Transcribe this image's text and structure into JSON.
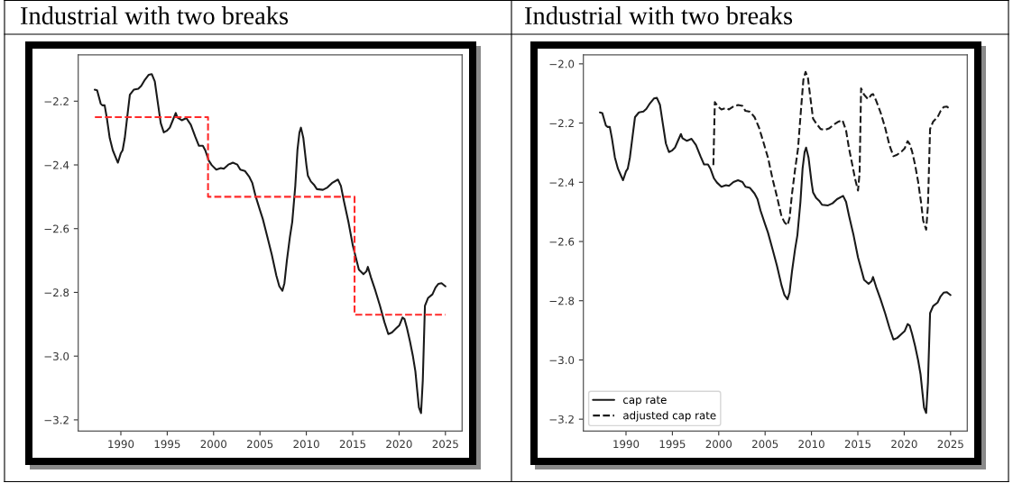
{
  "chart_data": [
    {
      "type": "line",
      "title": "Industrial with two breaks",
      "series": [
        {
          "color": "#1a1a1a",
          "line_style": "solid",
          "x": [
            1987.18,
            1987.44,
            1987.83,
            1988.0,
            1988.25,
            1988.48,
            1988.8,
            1989.13,
            1989.45,
            1989.68,
            1990.0,
            1990.19,
            1990.42,
            1990.68,
            1990.97,
            1991.39,
            1991.88,
            1992.2,
            1992.59,
            1993.01,
            1993.33,
            1993.66,
            1993.98,
            1994.3,
            1994.63,
            1994.95,
            1995.28,
            1995.6,
            1995.92,
            1996.09,
            1996.57,
            1997.06,
            1997.54,
            1998.03,
            1998.42,
            1998.84,
            1999.1,
            1999.49,
            1999.81,
            2000.29,
            2000.78,
            2001.1,
            2001.59,
            2002.08,
            2002.56,
            2002.88,
            2003.37,
            2003.86,
            2004.18,
            2004.5,
            2004.99,
            2005.31,
            2005.8,
            2006.28,
            2006.77,
            2007.09,
            2007.42,
            2007.64,
            2007.9,
            2008.23,
            2008.48,
            2008.81,
            2009.04,
            2009.26,
            2009.42,
            2009.68,
            2010.01,
            2010.17,
            2010.49,
            2010.82,
            2011.14,
            2011.79,
            2012.27,
            2012.76,
            2013.41,
            2013.73,
            2014.05,
            2014.54,
            2015.02,
            2015.35,
            2015.67,
            2016.16,
            2016.48,
            2016.64,
            2016.97,
            2017.45,
            2017.94,
            2018.42,
            2018.84,
            2019.23,
            2019.72,
            2020.04,
            2020.37,
            2020.59,
            2020.85,
            2021.18,
            2021.5,
            2021.76,
            2021.98,
            2022.14,
            2022.37,
            2022.56,
            2022.79,
            2023.12,
            2023.6,
            2023.93,
            2024.25,
            2024.58,
            2025.0
          ],
          "values": [
            -2.164,
            -2.166,
            -2.208,
            -2.213,
            -2.213,
            -2.251,
            -2.316,
            -2.354,
            -2.377,
            -2.393,
            -2.363,
            -2.354,
            -2.316,
            -2.251,
            -2.18,
            -2.164,
            -2.161,
            -2.152,
            -2.133,
            -2.117,
            -2.115,
            -2.138,
            -2.204,
            -2.269,
            -2.298,
            -2.293,
            -2.283,
            -2.26,
            -2.237,
            -2.251,
            -2.26,
            -2.253,
            -2.274,
            -2.312,
            -2.34,
            -2.34,
            -2.354,
            -2.387,
            -2.401,
            -2.415,
            -2.41,
            -2.412,
            -2.399,
            -2.393,
            -2.399,
            -2.415,
            -2.419,
            -2.438,
            -2.457,
            -2.495,
            -2.541,
            -2.57,
            -2.626,
            -2.682,
            -2.748,
            -2.781,
            -2.795,
            -2.771,
            -2.701,
            -2.626,
            -2.579,
            -2.466,
            -2.354,
            -2.298,
            -2.283,
            -2.316,
            -2.401,
            -2.434,
            -2.452,
            -2.462,
            -2.476,
            -2.478,
            -2.471,
            -2.457,
            -2.446,
            -2.466,
            -2.513,
            -2.579,
            -2.654,
            -2.692,
            -2.729,
            -2.743,
            -2.734,
            -2.72,
            -2.753,
            -2.795,
            -2.842,
            -2.893,
            -2.931,
            -2.926,
            -2.912,
            -2.903,
            -2.879,
            -2.884,
            -2.912,
            -2.954,
            -3.001,
            -3.048,
            -3.114,
            -3.161,
            -3.179,
            -3.076,
            -2.842,
            -2.818,
            -2.806,
            -2.785,
            -2.773,
            -2.771,
            -2.781
          ]
        },
        {
          "type": "step",
          "color": "#ff2a2a",
          "line_style": "dashed",
          "x": [
            1987.2,
            1999.4,
            2015.2,
            2025.0
          ],
          "values": [
            -2.25,
            -2.5,
            -2.87,
            -2.87
          ]
        }
      ],
      "xlim": [
        1985.4,
        2026.8
      ],
      "xticks": [
        1990,
        1995,
        2000,
        2005,
        2010,
        2015,
        2020,
        2025
      ],
      "ylim": [
        -3.235,
        -2.055
      ],
      "yticks": [
        {
          "value": -2.2,
          "label": "−2.2"
        },
        {
          "value": -2.4,
          "label": "−2.4"
        },
        {
          "value": -2.6,
          "label": "−2.6"
        },
        {
          "value": -2.8,
          "label": "−2.8"
        },
        {
          "value": -3.0,
          "label": "−3.0"
        },
        {
          "value": -3.2,
          "label": "−3.2"
        }
      ]
    },
    {
      "type": "line",
      "title": "Industrial with two breaks",
      "series": [
        {
          "name": "cap rate",
          "color": "#1a1a1a",
          "line_style": "solid",
          "x": [
            1987.18,
            1987.44,
            1987.83,
            1988.0,
            1988.25,
            1988.48,
            1988.8,
            1989.13,
            1989.45,
            1989.68,
            1990.0,
            1990.19,
            1990.42,
            1990.68,
            1990.97,
            1991.39,
            1991.88,
            1992.2,
            1992.59,
            1993.01,
            1993.33,
            1993.66,
            1993.98,
            1994.3,
            1994.63,
            1994.95,
            1995.28,
            1995.6,
            1995.92,
            1996.09,
            1996.57,
            1997.06,
            1997.54,
            1998.03,
            1998.42,
            1998.84,
            1999.1,
            1999.49,
            1999.81,
            2000.29,
            2000.78,
            2001.1,
            2001.59,
            2002.08,
            2002.56,
            2002.88,
            2003.37,
            2003.86,
            2004.18,
            2004.5,
            2004.99,
            2005.31,
            2005.8,
            2006.28,
            2006.77,
            2007.09,
            2007.42,
            2007.64,
            2007.9,
            2008.23,
            2008.48,
            2008.81,
            2009.04,
            2009.26,
            2009.42,
            2009.68,
            2010.01,
            2010.17,
            2010.49,
            2010.82,
            2011.14,
            2011.79,
            2012.27,
            2012.76,
            2013.41,
            2013.73,
            2014.05,
            2014.54,
            2015.02,
            2015.35,
            2015.67,
            2016.16,
            2016.48,
            2016.64,
            2016.97,
            2017.45,
            2017.94,
            2018.42,
            2018.84,
            2019.23,
            2019.72,
            2020.04,
            2020.37,
            2020.59,
            2020.85,
            2021.18,
            2021.5,
            2021.76,
            2021.98,
            2022.14,
            2022.37,
            2022.56,
            2022.79,
            2023.12,
            2023.6,
            2023.93,
            2024.25,
            2024.58,
            2025.0
          ],
          "values": [
            -2.164,
            -2.166,
            -2.208,
            -2.213,
            -2.213,
            -2.251,
            -2.316,
            -2.354,
            -2.377,
            -2.393,
            -2.363,
            -2.354,
            -2.316,
            -2.251,
            -2.18,
            -2.164,
            -2.161,
            -2.152,
            -2.133,
            -2.117,
            -2.115,
            -2.138,
            -2.204,
            -2.269,
            -2.298,
            -2.293,
            -2.283,
            -2.26,
            -2.237,
            -2.251,
            -2.26,
            -2.253,
            -2.274,
            -2.312,
            -2.34,
            -2.34,
            -2.354,
            -2.387,
            -2.401,
            -2.415,
            -2.41,
            -2.412,
            -2.399,
            -2.393,
            -2.399,
            -2.415,
            -2.419,
            -2.438,
            -2.457,
            -2.495,
            -2.541,
            -2.57,
            -2.626,
            -2.682,
            -2.748,
            -2.781,
            -2.795,
            -2.771,
            -2.701,
            -2.626,
            -2.579,
            -2.466,
            -2.354,
            -2.298,
            -2.283,
            -2.316,
            -2.401,
            -2.434,
            -2.452,
            -2.462,
            -2.476,
            -2.478,
            -2.471,
            -2.457,
            -2.446,
            -2.466,
            -2.513,
            -2.579,
            -2.654,
            -2.692,
            -2.729,
            -2.743,
            -2.734,
            -2.72,
            -2.753,
            -2.795,
            -2.842,
            -2.893,
            -2.931,
            -2.926,
            -2.912,
            -2.903,
            -2.879,
            -2.884,
            -2.912,
            -2.954,
            -3.001,
            -3.048,
            -3.114,
            -3.161,
            -3.179,
            -3.076,
            -2.842,
            -2.818,
            -2.806,
            -2.785,
            -2.773,
            -2.771,
            -2.781
          ]
        },
        {
          "name": "adjusted cap rate",
          "color": "#1a1a1a",
          "line_style": "dashed",
          "x": [
            1999.42,
            1999.58,
            1999.91,
            2000.29,
            2000.78,
            2001.1,
            2001.59,
            2002.08,
            2002.56,
            2002.88,
            2003.37,
            2003.86,
            2004.34,
            2004.83,
            2005.31,
            2005.8,
            2006.28,
            2006.77,
            2007.09,
            2007.42,
            2007.64,
            2007.9,
            2008.23,
            2008.55,
            2008.87,
            2009.13,
            2009.36,
            2009.62,
            2009.84,
            2010.17,
            2010.49,
            2010.98,
            2011.46,
            2011.95,
            2012.43,
            2012.92,
            2013.34,
            2013.73,
            2014.05,
            2014.38,
            2014.7,
            2015.02,
            2015.19,
            2015.35,
            2015.67,
            2016.09,
            2016.48,
            2016.64,
            2016.97,
            2017.45,
            2017.94,
            2018.42,
            2018.84,
            2019.23,
            2019.72,
            2020.04,
            2020.37,
            2020.59,
            2020.85,
            2021.18,
            2021.5,
            2021.82,
            2022.05,
            2022.37,
            2022.56,
            2022.79,
            2023.12,
            2023.6,
            2023.93,
            2024.25,
            2024.58,
            2025.0
          ],
          "values": [
            -2.342,
            -2.129,
            -2.144,
            -2.154,
            -2.149,
            -2.154,
            -2.144,
            -2.139,
            -2.142,
            -2.159,
            -2.162,
            -2.18,
            -2.215,
            -2.266,
            -2.317,
            -2.388,
            -2.449,
            -2.515,
            -2.535,
            -2.545,
            -2.52,
            -2.439,
            -2.357,
            -2.286,
            -2.154,
            -2.053,
            -2.027,
            -2.048,
            -2.104,
            -2.185,
            -2.2,
            -2.22,
            -2.223,
            -2.217,
            -2.205,
            -2.195,
            -2.19,
            -2.225,
            -2.286,
            -2.337,
            -2.388,
            -2.428,
            -2.368,
            -2.083,
            -2.104,
            -2.119,
            -2.104,
            -2.102,
            -2.124,
            -2.164,
            -2.215,
            -2.276,
            -2.312,
            -2.307,
            -2.296,
            -2.286,
            -2.261,
            -2.271,
            -2.296,
            -2.342,
            -2.398,
            -2.469,
            -2.53,
            -2.56,
            -2.479,
            -2.22,
            -2.195,
            -2.18,
            -2.159,
            -2.146,
            -2.144,
            -2.154
          ]
        }
      ],
      "legend": "bottom left",
      "xlim": [
        1985.4,
        2026.8
      ],
      "xticks": [
        1990,
        1995,
        2000,
        2005,
        2010,
        2015,
        2020,
        2025
      ],
      "ylim": [
        -3.24,
        -1.97
      ],
      "yticks": [
        {
          "value": -2.0,
          "label": "−2.0"
        },
        {
          "value": -2.2,
          "label": "−2.2"
        },
        {
          "value": -2.4,
          "label": "−2.4"
        },
        {
          "value": -2.6,
          "label": "−2.6"
        },
        {
          "value": -2.8,
          "label": "−2.8"
        },
        {
          "value": -3.0,
          "label": "−3.0"
        },
        {
          "value": -3.2,
          "label": "−3.2"
        }
      ]
    }
  ]
}
